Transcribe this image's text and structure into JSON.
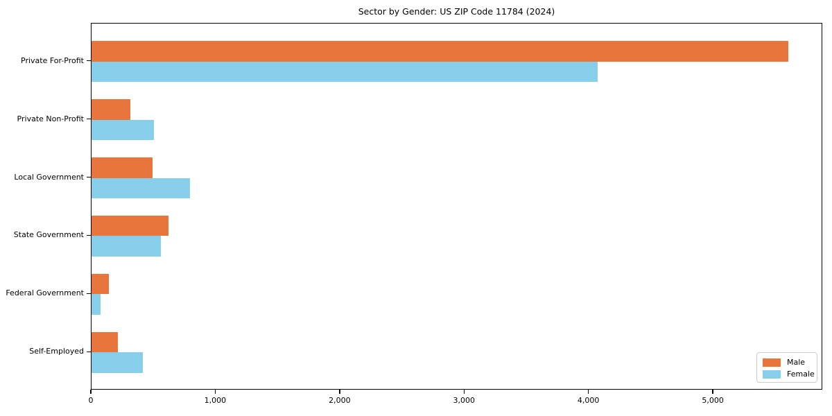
{
  "chart_data": {
    "type": "bar",
    "orientation": "horizontal",
    "title": "Sector by Gender: US ZIP Code 11784 (2024)",
    "categories": [
      "Private For-Profit",
      "Private Non-Profit",
      "Local Government",
      "State Government",
      "Federal Government",
      "Self-Employed"
    ],
    "series": [
      {
        "name": "Male",
        "color": "#E8763C",
        "values": [
          5600,
          310,
          490,
          620,
          140,
          210
        ]
      },
      {
        "name": "Female",
        "color": "#87CEEB",
        "values": [
          4070,
          500,
          790,
          560,
          70,
          410
        ]
      }
    ],
    "xlim": [
      0,
      5880
    ],
    "xticks": [
      0,
      1000,
      2000,
      3000,
      4000,
      5000
    ],
    "xtick_labels": [
      "0",
      "1,000",
      "2,000",
      "3,000",
      "4,000",
      "5,000"
    ],
    "grid": false,
    "legend_position": "lower right",
    "axis_color": "#000000",
    "background_color": "#ffffff"
  }
}
